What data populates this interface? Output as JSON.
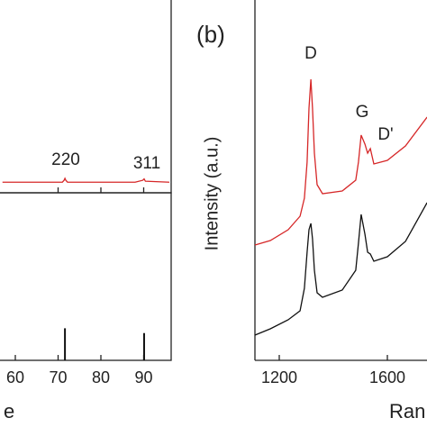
{
  "chart_data": [
    {
      "type": "line",
      "x": [
        57,
        65,
        70,
        71,
        71.4,
        71.6,
        71.8,
        72.2,
        80,
        88,
        89.8,
        90.1,
        90.4,
        96
      ],
      "values": [
        5.5,
        5.5,
        5.5,
        5.5,
        6.5,
        7.5,
        6.5,
        5.5,
        5.5,
        5.5,
        6.5,
        7.2,
        6,
        5.5
      ],
      "color": "#d62728",
      "xlim": [
        57,
        96
      ],
      "ylim": [
        0,
        100
      ],
      "xticks": [
        70,
        80,
        90
      ],
      "annotations": [
        "220",
        "311"
      ]
    },
    {
      "type": "stick",
      "x": [
        71.6,
        90.1
      ],
      "values": [
        20,
        17
      ],
      "color": "#111111",
      "xlim": [
        57,
        96
      ],
      "ylim": [
        0,
        100
      ],
      "xticks": [
        60,
        70,
        80,
        90
      ],
      "xlabel": "e"
    },
    {
      "type": "line",
      "label": "(b)",
      "ylabel": "Intensity (a.u.)",
      "xlabel": "Ran",
      "x": [
        1110,
        1167,
        1233,
        1277,
        1293,
        1303,
        1310,
        1317,
        1323,
        1330,
        1340,
        1360,
        1433,
        1483,
        1493,
        1503,
        1517,
        1527,
        1537,
        1550,
        1600,
        1667,
        1747
      ],
      "series": [
        {
          "color": "#d62728",
          "values": [
            32,
            33.25,
            36.25,
            40,
            45,
            55,
            70,
            78,
            70,
            57.5,
            48.75,
            46.25,
            47,
            50,
            55,
            62.5,
            60,
            57.5,
            58.75,
            54.5,
            55.5,
            59.5,
            67.5
          ]
        },
        {
          "color": "#111111",
          "values": [
            7,
            8.75,
            11.25,
            13.75,
            20,
            30,
            36.25,
            38,
            33.75,
            25,
            18.75,
            17.5,
            19.5,
            25,
            32.5,
            40.5,
            35,
            30,
            29.5,
            27.5,
            28.75,
            33,
            43.75
          ]
        }
      ],
      "xlim": [
        1110,
        1750
      ],
      "ylim": [
        0,
        100
      ],
      "xticks": [
        1200,
        1600
      ],
      "annotations": [
        "D",
        "G",
        "D'"
      ]
    }
  ]
}
